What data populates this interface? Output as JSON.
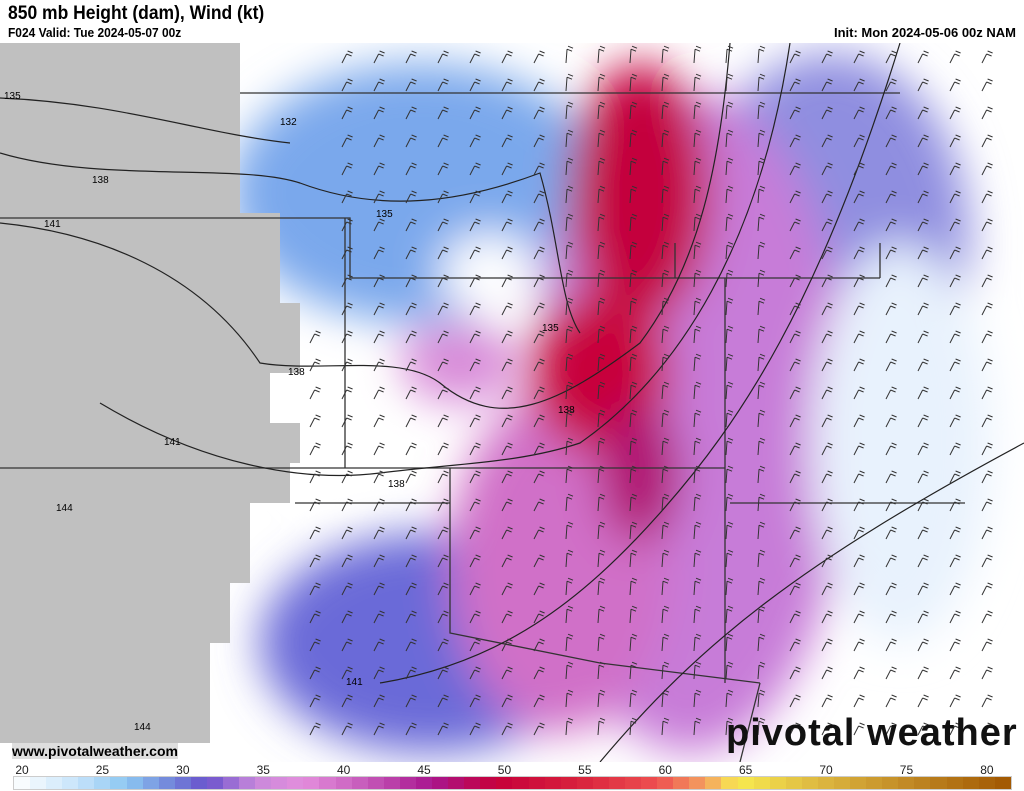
{
  "header": {
    "title": "850 mb Height (dam), Wind (kt)",
    "valid": "F024 Valid: Tue 2024-05-07 00z",
    "init": "Init: Mon 2024-05-06 00z NAM"
  },
  "watermark": {
    "site": "www.pivotalweather.com",
    "logo": "pivotal weather"
  },
  "contour_labels": [
    "135",
    "132",
    "138",
    "141",
    "135",
    "138",
    "138",
    "141",
    "138",
    "144",
    "141",
    "144"
  ],
  "colorbar": {
    "ticks": [
      "20",
      "25",
      "30",
      "35",
      "40",
      "45",
      "50",
      "55",
      "60",
      "65",
      "70",
      "75",
      "80"
    ],
    "min": 20,
    "max": 82,
    "stops": [
      [
        "20",
        "#ffffff"
      ],
      [
        "24",
        "#c6e3fa"
      ],
      [
        "27",
        "#8cc7f2"
      ],
      [
        "30",
        "#6f7fd8"
      ],
      [
        "32",
        "#6a52cc"
      ],
      [
        "35",
        "#c888db"
      ],
      [
        "38",
        "#e48edc"
      ],
      [
        "42",
        "#c457b8"
      ],
      [
        "46",
        "#a8168f"
      ],
      [
        "50",
        "#c6003a"
      ],
      [
        "55",
        "#d8213c"
      ],
      [
        "60",
        "#ee5050"
      ],
      [
        "63",
        "#f4a060"
      ],
      [
        "65",
        "#f8ea50"
      ],
      [
        "70",
        "#ddb840"
      ],
      [
        "76",
        "#bf8622"
      ],
      [
        "82",
        "#a05600"
      ]
    ]
  }
}
